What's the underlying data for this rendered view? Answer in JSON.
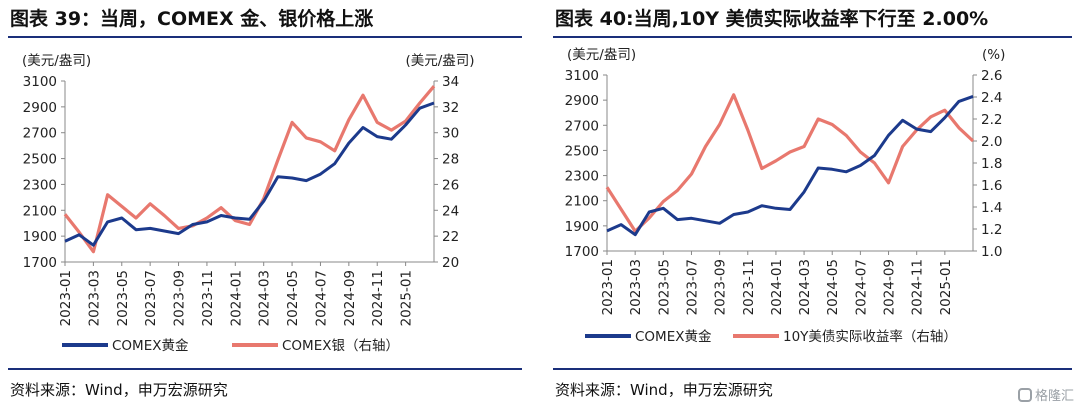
{
  "left": {
    "title": "图表 39：当周，COMEX 金、银价格上涨",
    "source": "资料来源：Wind，申万宏源研究"
  },
  "right": {
    "title": "图表 40:当周,10Y 美债实际收益率下行至 2.00%",
    "source": "资料来源：Wind，申万宏源研究"
  },
  "watermark": "格隆汇",
  "colors": {
    "gold": "#1c3a8c",
    "secondary": "#e8786e"
  },
  "chart_data": [
    {
      "type": "line",
      "title": "图表 39：当周，COMEX 金、银价格上涨",
      "y_left_unit": "(美元/盎司)",
      "y_right_unit": "(美元/盎司)",
      "ylim_left": [
        1700,
        3100
      ],
      "yticks_left": [
        "1700",
        "1900",
        "2100",
        "2300",
        "2500",
        "2700",
        "2900",
        "3100"
      ],
      "ylim_right": [
        20,
        34
      ],
      "yticks_right": [
        "20",
        "22",
        "24",
        "26",
        "28",
        "30",
        "32",
        "34"
      ],
      "x_range": [
        "2023-01",
        "2025-03"
      ],
      "xticks": [
        "2023-01",
        "2023-03",
        "2023-05",
        "2023-07",
        "2023-09",
        "2023-11",
        "2024-01",
        "2024-03",
        "2024-05",
        "2024-07",
        "2024-09",
        "2024-11",
        "2025-01"
      ],
      "legend_position": "bottom",
      "series": [
        {
          "name": "COMEX黄金",
          "axis": "left",
          "color": "#1c3a8c",
          "x": [
            "2023-01",
            "2023-02",
            "2023-03",
            "2023-04",
            "2023-05",
            "2023-06",
            "2023-07",
            "2023-08",
            "2023-09",
            "2023-10",
            "2023-11",
            "2023-12",
            "2024-01",
            "2024-02",
            "2024-03",
            "2024-04",
            "2024-05",
            "2024-06",
            "2024-07",
            "2024-08",
            "2024-09",
            "2024-10",
            "2024-11",
            "2024-12",
            "2025-01",
            "2025-02",
            "2025-03"
          ],
          "values": [
            1860,
            1910,
            1830,
            2010,
            2040,
            1950,
            1960,
            1940,
            1920,
            1990,
            2010,
            2060,
            2040,
            2030,
            2170,
            2360,
            2350,
            2330,
            2380,
            2460,
            2620,
            2740,
            2670,
            2650,
            2760,
            2890,
            2930
          ]
        },
        {
          "name": "COMEX银（右轴）",
          "axis": "right",
          "color": "#e8786e",
          "x": [
            "2023-01",
            "2023-02",
            "2023-03",
            "2023-04",
            "2023-05",
            "2023-06",
            "2023-07",
            "2023-08",
            "2023-09",
            "2023-10",
            "2023-11",
            "2023-12",
            "2024-01",
            "2024-02",
            "2024-03",
            "2024-04",
            "2024-05",
            "2024-06",
            "2024-07",
            "2024-08",
            "2024-09",
            "2024-10",
            "2024-11",
            "2024-12",
            "2025-01",
            "2025-02",
            "2025-03"
          ],
          "values": [
            23.7,
            22.3,
            20.8,
            25.2,
            24.3,
            23.4,
            24.5,
            23.6,
            22.6,
            22.8,
            23.4,
            24.2,
            23.2,
            22.9,
            24.9,
            27.9,
            30.8,
            29.6,
            29.3,
            28.6,
            31.0,
            32.9,
            30.8,
            30.2,
            30.9,
            32.3,
            33.6
          ]
        }
      ]
    },
    {
      "type": "line",
      "title": "图表 40:当周,10Y 美债实际收益率下行至 2.00%",
      "y_left_unit": "(美元/盎司)",
      "y_right_unit": "(%)",
      "ylim_left": [
        1700,
        3100
      ],
      "yticks_left": [
        "1700",
        "1900",
        "2100",
        "2300",
        "2500",
        "2700",
        "2900",
        "3100"
      ],
      "ylim_right": [
        1.0,
        2.6
      ],
      "yticks_right": [
        "1.0",
        "1.2",
        "1.4",
        "1.6",
        "1.8",
        "2.0",
        "2.2",
        "2.4",
        "2.6"
      ],
      "x_range": [
        "2023-01",
        "2025-03"
      ],
      "xticks": [
        "2023-01",
        "2023-03",
        "2023-05",
        "2023-07",
        "2023-09",
        "2023-11",
        "2024-01",
        "2024-03",
        "2024-05",
        "2024-07",
        "2024-09",
        "2024-11",
        "2025-01"
      ],
      "legend_position": "bottom",
      "series": [
        {
          "name": "COMEX黄金",
          "axis": "left",
          "color": "#1c3a8c",
          "x": [
            "2023-01",
            "2023-02",
            "2023-03",
            "2023-04",
            "2023-05",
            "2023-06",
            "2023-07",
            "2023-08",
            "2023-09",
            "2023-10",
            "2023-11",
            "2023-12",
            "2024-01",
            "2024-02",
            "2024-03",
            "2024-04",
            "2024-05",
            "2024-06",
            "2024-07",
            "2024-08",
            "2024-09",
            "2024-10",
            "2024-11",
            "2024-12",
            "2025-01",
            "2025-02",
            "2025-03"
          ],
          "values": [
            1860,
            1910,
            1830,
            2010,
            2040,
            1950,
            1960,
            1940,
            1920,
            1990,
            2010,
            2060,
            2040,
            2030,
            2170,
            2360,
            2350,
            2330,
            2380,
            2460,
            2620,
            2740,
            2670,
            2650,
            2760,
            2890,
            2930
          ]
        },
        {
          "name": "10Y美债实际收益率（右轴）",
          "axis": "right",
          "color": "#e8786e",
          "x": [
            "2023-01",
            "2023-02",
            "2023-03",
            "2023-04",
            "2023-05",
            "2023-06",
            "2023-07",
            "2023-08",
            "2023-09",
            "2023-10",
            "2023-11",
            "2023-12",
            "2024-01",
            "2024-02",
            "2024-03",
            "2024-04",
            "2024-05",
            "2024-06",
            "2024-07",
            "2024-08",
            "2024-09",
            "2024-10",
            "2024-11",
            "2024-12",
            "2025-01",
            "2025-02",
            "2025-03"
          ],
          "values": [
            1.58,
            1.38,
            1.18,
            1.3,
            1.45,
            1.55,
            1.7,
            1.95,
            2.15,
            2.42,
            2.1,
            1.75,
            1.82,
            1.9,
            1.95,
            2.2,
            2.15,
            2.05,
            1.9,
            1.8,
            1.62,
            1.95,
            2.1,
            2.22,
            2.28,
            2.12,
            2.0
          ]
        }
      ]
    }
  ]
}
